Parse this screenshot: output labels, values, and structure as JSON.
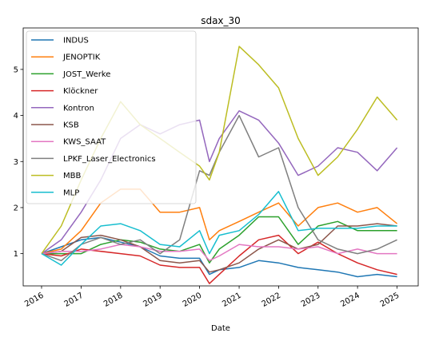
{
  "chart_data": {
    "type": "line",
    "title": "sdax_30",
    "xlabel": "Date",
    "ylabel": "",
    "x_ticks": [
      "2016",
      "2017",
      "2018",
      "2019",
      "2020",
      "2021",
      "2022",
      "2023",
      "2024",
      "2025"
    ],
    "y_ticks": [
      1,
      2,
      3,
      4,
      5
    ],
    "xlim": [
      "2015-07-15",
      "2025-07-15"
    ],
    "ylim": [
      0.3,
      5.9
    ],
    "grid": false,
    "legend_position": "upper-left",
    "x": [
      "2016-01",
      "2016-07",
      "2017-01",
      "2017-07",
      "2018-01",
      "2018-07",
      "2019-01",
      "2019-07",
      "2020-01",
      "2020-04",
      "2020-07",
      "2021-01",
      "2021-07",
      "2022-01",
      "2022-07",
      "2023-01",
      "2023-07",
      "2024-01",
      "2024-07",
      "2025-01"
    ],
    "series": [
      {
        "name": "INDUS",
        "color": "#1f77b4",
        "values": [
          1.0,
          1.15,
          1.3,
          1.35,
          1.25,
          1.15,
          0.95,
          0.9,
          0.9,
          0.55,
          0.65,
          0.7,
          0.85,
          0.8,
          0.7,
          0.65,
          0.6,
          0.5,
          0.55,
          0.5
        ]
      },
      {
        "name": "JENOPTIK",
        "color": "#ff7f0e",
        "values": [
          1.0,
          1.1,
          1.5,
          2.1,
          2.4,
          2.4,
          1.9,
          1.9,
          2.0,
          1.3,
          1.5,
          1.7,
          1.9,
          2.1,
          1.6,
          2.0,
          2.1,
          1.9,
          2.0,
          1.65
        ]
      },
      {
        "name": "JOST_Werke",
        "color": "#2ca02c",
        "values": [
          1.0,
          1.0,
          1.0,
          1.2,
          1.3,
          1.25,
          1.1,
          1.05,
          1.2,
          0.8,
          1.1,
          1.4,
          1.8,
          1.8,
          1.2,
          1.6,
          1.7,
          1.5,
          1.5,
          1.5
        ]
      },
      {
        "name": "Klöckner",
        "color": "#d62728",
        "values": [
          1.0,
          0.95,
          1.1,
          1.05,
          1.0,
          0.95,
          0.75,
          0.7,
          0.7,
          0.35,
          0.55,
          0.95,
          1.3,
          1.4,
          1.0,
          1.25,
          1.0,
          0.8,
          0.65,
          0.55
        ]
      },
      {
        "name": "Kontron",
        "color": "#9467bd",
        "values": [
          1.0,
          1.3,
          1.9,
          2.6,
          3.5,
          3.8,
          3.6,
          3.8,
          3.9,
          3.0,
          3.5,
          4.1,
          3.9,
          3.4,
          2.7,
          2.9,
          3.3,
          3.2,
          2.8,
          3.3
        ]
      },
      {
        "name": "KSB",
        "color": "#8c564b",
        "values": [
          1.0,
          1.05,
          1.35,
          1.4,
          1.3,
          1.15,
          0.85,
          0.8,
          0.85,
          0.6,
          0.65,
          0.8,
          1.1,
          1.3,
          1.1,
          1.2,
          1.6,
          1.6,
          1.65,
          1.6
        ]
      },
      {
        "name": "KWS_SAAT",
        "color": "#e377c2",
        "values": [
          1.0,
          1.05,
          1.05,
          1.1,
          1.2,
          1.15,
          1.05,
          1.05,
          1.1,
          0.85,
          0.95,
          1.2,
          1.15,
          1.15,
          1.1,
          1.15,
          1.0,
          1.1,
          1.0,
          1.0
        ]
      },
      {
        "name": "LPKF_Laser_Electronics",
        "color": "#7f7f7f",
        "values": [
          1.0,
          0.85,
          1.2,
          1.35,
          1.2,
          1.3,
          1.0,
          1.3,
          2.8,
          2.7,
          3.2,
          4.0,
          3.1,
          3.3,
          2.0,
          1.3,
          1.1,
          1.0,
          1.1,
          1.3
        ]
      },
      {
        "name": "MBB",
        "color": "#bcbd22",
        "values": [
          1.0,
          1.6,
          2.6,
          3.5,
          4.3,
          3.8,
          3.5,
          3.2,
          2.9,
          2.6,
          3.2,
          5.5,
          5.1,
          4.6,
          3.5,
          2.7,
          3.1,
          3.7,
          4.4,
          3.9
        ]
      },
      {
        "name": "MLP",
        "color": "#17becf",
        "values": [
          1.0,
          0.75,
          1.2,
          1.6,
          1.65,
          1.5,
          1.2,
          1.15,
          1.5,
          1.0,
          1.4,
          1.5,
          1.85,
          2.35,
          1.5,
          1.55,
          1.55,
          1.55,
          1.6,
          1.6
        ]
      }
    ]
  }
}
